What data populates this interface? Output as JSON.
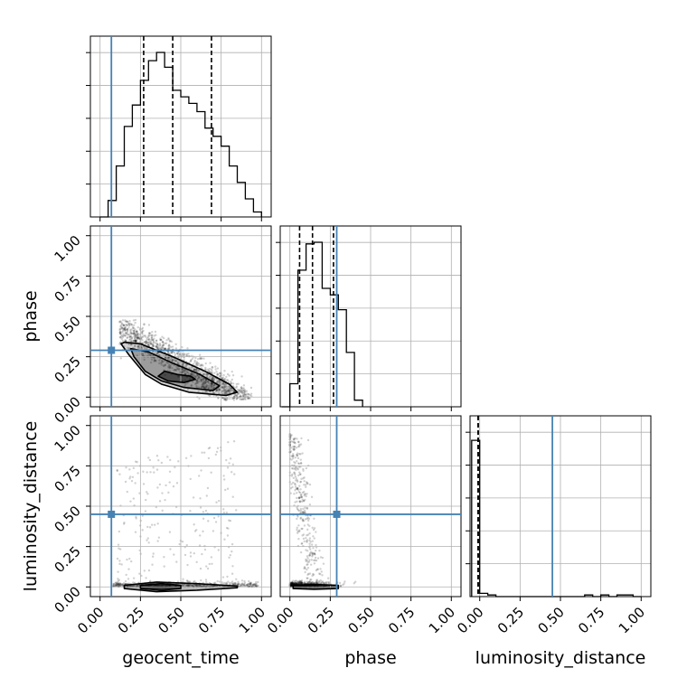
{
  "chart_data": {
    "type": "corner",
    "parameters": [
      "geocent_time",
      "phase",
      "luminosity_distance"
    ],
    "axis_labels": {
      "geocent_time": "geocent_time",
      "phase": "phase",
      "luminosity_distance": "luminosity_distance"
    },
    "tick_labels": [
      "0.00",
      "0.25",
      "0.50",
      "0.75",
      "1.00"
    ],
    "ranges": {
      "geocent_time": [
        -0.06,
        1.06
      ],
      "phase": [
        -0.06,
        1.06
      ],
      "luminosity_distance": [
        -0.06,
        1.06
      ]
    },
    "truths": {
      "geocent_time": 0.07,
      "phase": 0.29,
      "luminosity_distance": 0.45
    },
    "truth_color": "#4682b4",
    "quantiles": {
      "geocent_time": [
        0.27,
        0.45,
        0.69
      ],
      "phase": [
        0.06,
        0.14,
        0.27
      ],
      "luminosity_distance": [
        -0.01,
        -0.01,
        -0.01
      ]
    },
    "histograms": {
      "geocent_time": {
        "bin_edges": [
          0.0,
          0.05,
          0.1,
          0.15,
          0.2,
          0.25,
          0.3,
          0.35,
          0.4,
          0.45,
          0.5,
          0.55,
          0.6,
          0.65,
          0.7,
          0.75,
          0.8,
          0.85,
          0.9,
          0.95,
          1.0
        ],
        "counts": [
          0.0,
          0.1,
          0.31,
          0.55,
          0.68,
          0.83,
          0.95,
          1.0,
          0.91,
          0.77,
          0.73,
          0.69,
          0.64,
          0.54,
          0.49,
          0.43,
          0.31,
          0.21,
          0.11,
          0.03
        ]
      },
      "phase": {
        "bin_edges": [
          -0.05,
          0.0,
          0.05,
          0.1,
          0.15,
          0.2,
          0.25,
          0.3,
          0.35,
          0.4,
          0.45
        ],
        "counts": [
          0.0,
          0.14,
          0.83,
          0.99,
          1.0,
          0.72,
          0.68,
          0.59,
          0.33,
          0.04
        ]
      },
      "luminosity_distance": {
        "bin_edges": [
          -0.05,
          0.0,
          0.05,
          0.1,
          0.15,
          0.2,
          0.25,
          0.3,
          0.35,
          0.4,
          0.45,
          0.5,
          0.55,
          0.6,
          0.65,
          0.7,
          0.75,
          0.8,
          0.85,
          0.9,
          0.95,
          1.0
        ],
        "counts": [
          0.95,
          0.02,
          0.01,
          0.0,
          0.0,
          0.0,
          0.0,
          0.0,
          0.0,
          0.0,
          0.0,
          0.0,
          0.0,
          0.0,
          0.01,
          0.0,
          0.01,
          0.0,
          0.01,
          0.01,
          0.0
        ]
      }
    },
    "contours_2d": {
      "phase_vs_geocent_time": [
        {
          "level": "outer",
          "points": [
            [
              0.15,
              0.34
            ],
            [
              0.25,
              0.33
            ],
            [
              0.45,
              0.25
            ],
            [
              0.65,
              0.16
            ],
            [
              0.8,
              0.08
            ],
            [
              0.85,
              0.03
            ],
            [
              0.78,
              0.01
            ],
            [
              0.55,
              0.03
            ],
            [
              0.38,
              0.08
            ],
            [
              0.28,
              0.14
            ],
            [
              0.18,
              0.26
            ],
            [
              0.13,
              0.33
            ]
          ]
        },
        {
          "level": "middle",
          "points": [
            [
              0.19,
              0.3
            ],
            [
              0.3,
              0.28
            ],
            [
              0.45,
              0.21
            ],
            [
              0.62,
              0.14
            ],
            [
              0.74,
              0.07
            ],
            [
              0.7,
              0.04
            ],
            [
              0.52,
              0.06
            ],
            [
              0.38,
              0.1
            ],
            [
              0.28,
              0.16
            ],
            [
              0.21,
              0.25
            ]
          ]
        },
        {
          "level": "inner",
          "points": [
            [
              0.4,
              0.16
            ],
            [
              0.48,
              0.14
            ],
            [
              0.56,
              0.13
            ],
            [
              0.59,
              0.11
            ],
            [
              0.52,
              0.09
            ],
            [
              0.42,
              0.1
            ],
            [
              0.36,
              0.13
            ]
          ]
        }
      ],
      "luminosity_distance_vs_geocent_time": [
        {
          "level": "outer",
          "points": [
            [
              0.15,
              0.01
            ],
            [
              0.35,
              0.03
            ],
            [
              0.6,
              0.02
            ],
            [
              0.85,
              0.005
            ],
            [
              0.85,
              -0.005
            ],
            [
              0.6,
              -0.02
            ],
            [
              0.35,
              -0.03
            ],
            [
              0.15,
              -0.01
            ]
          ]
        },
        {
          "level": "inner",
          "points": [
            [
              0.25,
              0.01
            ],
            [
              0.38,
              0.02
            ],
            [
              0.5,
              0.01
            ],
            [
              0.5,
              -0.01
            ],
            [
              0.38,
              -0.02
            ],
            [
              0.25,
              -0.01
            ]
          ]
        }
      ],
      "luminosity_distance_vs_phase": [
        {
          "level": "outer",
          "points": [
            [
              0.02,
              0.01
            ],
            [
              0.15,
              0.015
            ],
            [
              0.3,
              0.01
            ],
            [
              0.3,
              -0.01
            ],
            [
              0.15,
              -0.015
            ],
            [
              0.02,
              -0.01
            ]
          ]
        }
      ]
    },
    "scatter_2d": {
      "phase_vs_geocent_time": "dense cloud from (0.12,0.45) to (0.92,0.0)",
      "luminosity_distance_vs_geocent_time": "sparse points, band near 0 plus arc up to 0.95",
      "luminosity_distance_vs_phase": "dense band near 0 with tail rising to (0.0,0.95)"
    },
    "grid": true
  }
}
